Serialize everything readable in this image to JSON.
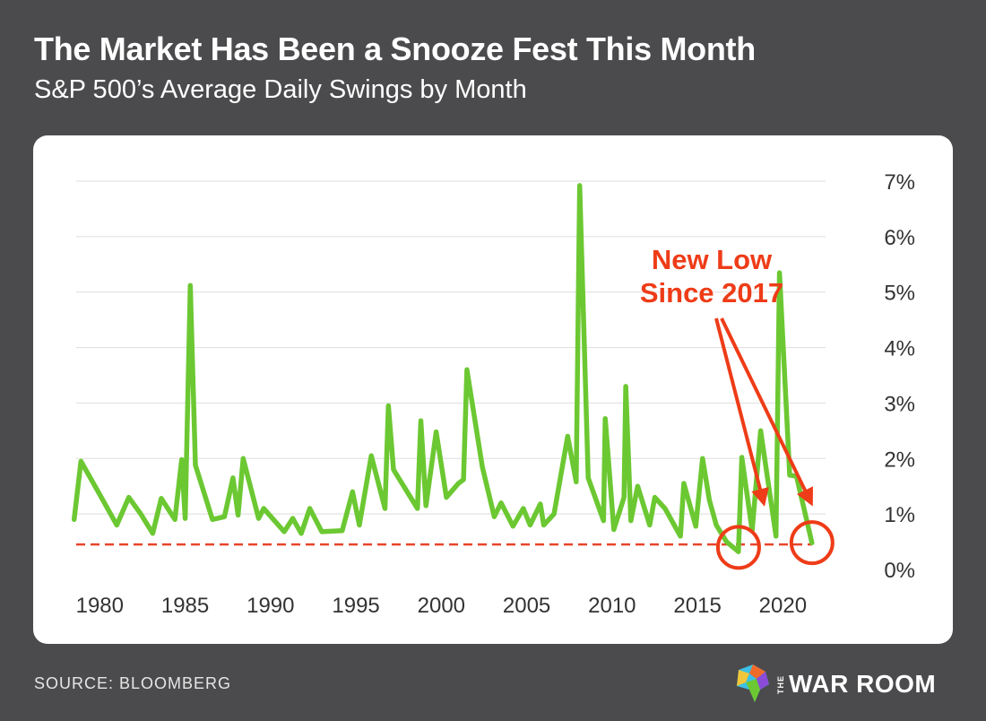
{
  "header": {
    "title": "The Market Has Been a Snooze Fest This Month",
    "subtitle": "S&P 500’s Average Daily Swings by Month"
  },
  "footer": {
    "source": "SOURCE: BLOOMBERG",
    "brand_the": "THE",
    "brand_name": "WAR ROOM"
  },
  "annotation": {
    "line1": "New Low",
    "line2": "Since 2017"
  },
  "colors": {
    "line": "#6cc832",
    "reference": "#e8442a",
    "annotation": "#ee3c18",
    "grid": "#dddddd",
    "tick_text": "#333333"
  },
  "chart_data": {
    "type": "line",
    "title": "The Market Has Been a Snooze Fest This Month",
    "subtitle": "S&P 500’s Average Daily Swings by Month",
    "xlabel": "",
    "ylabel": "",
    "xlim": [
      1978.2,
      2022.5
    ],
    "ylim": [
      0,
      7
    ],
    "x_ticks": [
      1980,
      1985,
      1990,
      1995,
      2000,
      2005,
      2010,
      2015,
      2020
    ],
    "x_tick_labels": [
      "1980",
      "1985",
      "1990",
      "1995",
      "2000",
      "2005",
      "2010",
      "2015",
      "2020"
    ],
    "y_ticks": [
      0,
      1,
      2,
      3,
      4,
      5,
      6,
      7
    ],
    "y_tick_labels": [
      "0%",
      "1%",
      "2%",
      "3%",
      "4%",
      "5%",
      "6%",
      "7%"
    ],
    "y_axis_side": "right",
    "grid": true,
    "reference_line": {
      "y": 0.45,
      "style": "dashed"
    },
    "series": [
      {
        "values": [
          [
            1978.5,
            0.9
          ],
          [
            1978.9,
            1.95
          ],
          [
            1980.0,
            1.35
          ],
          [
            1981.0,
            0.8
          ],
          [
            1981.7,
            1.3
          ],
          [
            1982.4,
            1.0
          ],
          [
            1983.1,
            0.65
          ],
          [
            1983.6,
            1.28
          ],
          [
            1984.4,
            0.9
          ],
          [
            1984.8,
            1.98
          ],
          [
            1985.0,
            0.92
          ],
          [
            1985.3,
            5.12
          ],
          [
            1985.6,
            1.88
          ],
          [
            1986.6,
            0.9
          ],
          [
            1987.3,
            0.95
          ],
          [
            1987.8,
            1.65
          ],
          [
            1988.1,
            0.98
          ],
          [
            1988.4,
            2.0
          ],
          [
            1989.3,
            0.92
          ],
          [
            1989.6,
            1.1
          ],
          [
            1990.8,
            0.68
          ],
          [
            1991.3,
            0.92
          ],
          [
            1991.8,
            0.65
          ],
          [
            1992.3,
            1.1
          ],
          [
            1993.0,
            0.68
          ],
          [
            1994.2,
            0.7
          ],
          [
            1994.8,
            1.4
          ],
          [
            1995.2,
            0.8
          ],
          [
            1995.9,
            2.05
          ],
          [
            1996.7,
            1.1
          ],
          [
            1996.9,
            2.95
          ],
          [
            1997.2,
            1.8
          ],
          [
            1998.6,
            1.1
          ],
          [
            1998.8,
            2.68
          ],
          [
            1999.1,
            1.15
          ],
          [
            1999.7,
            2.48
          ],
          [
            2000.3,
            1.3
          ],
          [
            2001.0,
            1.55
          ],
          [
            2001.3,
            1.62
          ],
          [
            2001.5,
            3.6
          ],
          [
            2002.4,
            1.85
          ],
          [
            2003.1,
            0.95
          ],
          [
            2003.5,
            1.2
          ],
          [
            2004.2,
            0.78
          ],
          [
            2004.8,
            1.1
          ],
          [
            2005.2,
            0.8
          ],
          [
            2005.8,
            1.18
          ],
          [
            2006.0,
            0.8
          ],
          [
            2006.6,
            1.0
          ],
          [
            2007.4,
            2.4
          ],
          [
            2007.9,
            1.58
          ],
          [
            2008.1,
            6.92
          ],
          [
            2008.6,
            1.65
          ],
          [
            2009.5,
            0.88
          ],
          [
            2009.6,
            2.72
          ],
          [
            2010.1,
            0.72
          ],
          [
            2010.7,
            1.3
          ],
          [
            2010.8,
            3.3
          ],
          [
            2011.1,
            0.88
          ],
          [
            2011.5,
            1.5
          ],
          [
            2012.2,
            0.8
          ],
          [
            2012.5,
            1.3
          ],
          [
            2013.1,
            1.1
          ],
          [
            2014.0,
            0.6
          ],
          [
            2014.2,
            1.55
          ],
          [
            2014.9,
            0.78
          ],
          [
            2015.3,
            2.0
          ],
          [
            2015.7,
            1.25
          ],
          [
            2016.1,
            0.8
          ],
          [
            2016.7,
            0.5
          ],
          [
            2017.4,
            0.32
          ],
          [
            2017.6,
            2.02
          ],
          [
            2018.2,
            0.7
          ],
          [
            2018.7,
            2.5
          ],
          [
            2019.6,
            0.6
          ],
          [
            2019.8,
            5.35
          ],
          [
            2020.4,
            1.7
          ],
          [
            2020.8,
            1.68
          ],
          [
            2021.7,
            0.48
          ]
        ]
      }
    ],
    "annotations": [
      {
        "text": "New Low Since 2017",
        "arrows_to": [
          [
            2017.3,
            0.35
          ],
          [
            2021.6,
            0.45
          ]
        ]
      }
    ]
  }
}
